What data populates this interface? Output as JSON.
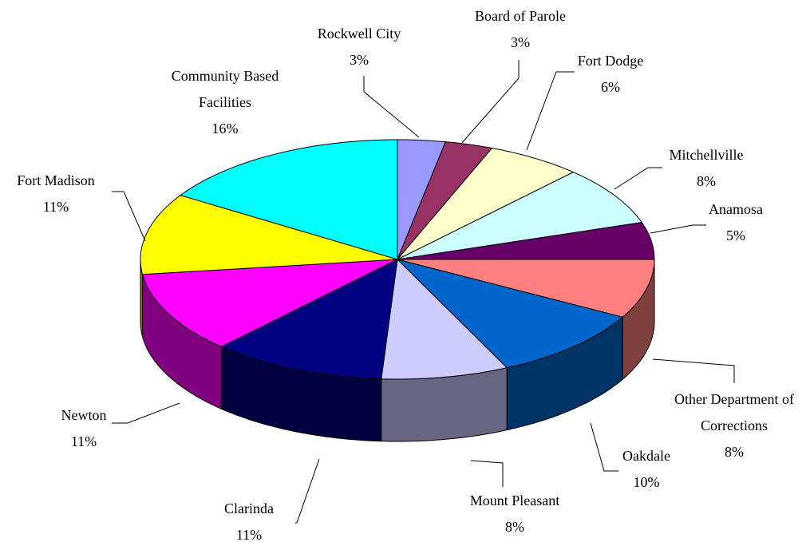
{
  "chart_data": {
    "type": "pie3d",
    "categories": [
      "Rockwell City",
      "Board of Parole",
      "Fort Dodge",
      "Mitchellville",
      "Anamosa",
      "Other Department of Corrections",
      "Oakdale",
      "Mount Pleasant",
      "Clarinda",
      "Newton",
      "Fort Madison",
      "Community Based Facilities"
    ],
    "values": [
      3,
      3,
      6,
      8,
      5,
      8,
      10,
      8,
      11,
      11,
      11,
      16
    ],
    "value_labels": [
      "3%",
      "3%",
      "6%",
      "8%",
      "5%",
      "8%",
      "10%",
      "8%",
      "11%",
      "11%",
      "11%",
      "16%"
    ],
    "colors": [
      "#9999ff",
      "#993366",
      "#ffffcc",
      "#ccffff",
      "#660066",
      "#ff8080",
      "#0066cc",
      "#ccccff",
      "#000080",
      "#ff00ff",
      "#ffff00",
      "#00ffff"
    ]
  }
}
